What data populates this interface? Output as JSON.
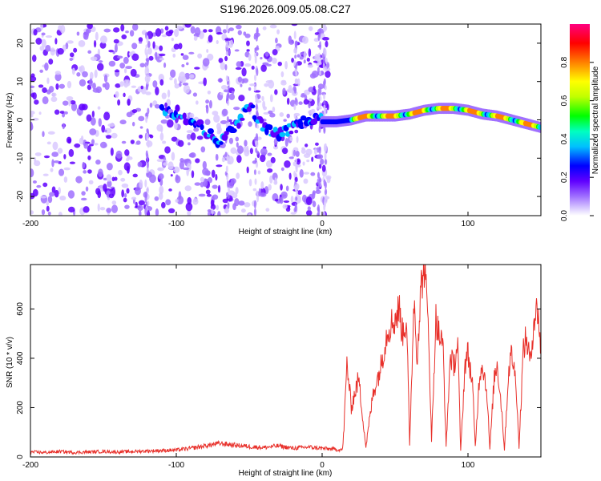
{
  "title": "S196.2026.009.05.08.C27",
  "chart_data": [
    {
      "type": "heatmap",
      "xlabel": "Height of straight line (km)",
      "ylabel": "Frequency (Hz)",
      "xlim": [
        -200,
        150
      ],
      "ylim": [
        -25,
        25
      ],
      "x_ticks": [
        -200,
        -100,
        0,
        100
      ],
      "x_tick_labels": [
        "-200",
        "-100",
        "0",
        "100"
      ],
      "y_ticks": [
        -20,
        -10,
        0,
        10,
        20
      ],
      "y_tick_labels": [
        "-20",
        "-10",
        "0",
        "10",
        "20"
      ],
      "colorbar": {
        "label": "Normalized spectral amplitude",
        "range": [
          0,
          1
        ],
        "ticks": [
          0.0,
          0.2,
          0.4,
          0.6,
          0.8
        ],
        "tick_labels": [
          "0.0",
          "0.2",
          "0.4",
          "0.6",
          "0.8"
        ],
        "colors": [
          "#ffffff",
          "#d9c9ff",
          "#a070ff",
          "#6000ff",
          "#0000ff",
          "#00c0ff",
          "#00ffc0",
          "#00ff00",
          "#c0ff00",
          "#ffff00",
          "#ff8000",
          "#ff0000",
          "#ff0080"
        ]
      },
      "ridge": {
        "description_x": [
          0,
          10,
          20,
          30,
          40,
          50,
          60,
          70,
          80,
          90,
          100,
          110,
          120,
          130,
          140,
          150
        ],
        "frequency_hz": [
          -0.5,
          -0.5,
          0,
          1,
          1,
          1,
          1.5,
          2.5,
          3,
          3,
          2.5,
          1.5,
          1,
          0,
          -1,
          -2
        ]
      },
      "pre_zero_band": {
        "x": [
          -110,
          -100,
          -90,
          -80,
          -70,
          -60,
          -50,
          -40,
          -30,
          -20,
          -10,
          0
        ],
        "frequency_hz": [
          3,
          2,
          0,
          -3,
          -6,
          -2,
          4,
          -2,
          -4,
          -2,
          0,
          0
        ]
      }
    },
    {
      "type": "line",
      "xlabel": "Height of straight line (km)",
      "ylabel": "SNR (10 * v/v)",
      "xlim": [
        -200,
        150
      ],
      "ylim": [
        0,
        780
      ],
      "x_ticks": [
        -200,
        -100,
        0,
        100
      ],
      "x_tick_labels": [
        "-200",
        "-100",
        "0",
        "100"
      ],
      "y_ticks": [
        0,
        200,
        400,
        600
      ],
      "y_tick_labels": [
        "0",
        "200",
        "400",
        "600"
      ],
      "series": [
        {
          "color": "#e8302a",
          "x": [
            -200,
            -190,
            -180,
            -170,
            -160,
            -150,
            -140,
            -130,
            -120,
            -110,
            -100,
            -90,
            -80,
            -70,
            -60,
            -50,
            -40,
            -30,
            -20,
            -10,
            0,
            10,
            14,
            15,
            17,
            20,
            25,
            30,
            35,
            40,
            45,
            50,
            53,
            55,
            58,
            60,
            63,
            65,
            68,
            70,
            73,
            75,
            78,
            80,
            83,
            85,
            88,
            90,
            93,
            95,
            98,
            100,
            103,
            105,
            108,
            110,
            113,
            115,
            118,
            120,
            123,
            125,
            128,
            130,
            133,
            135,
            138,
            140,
            143,
            145,
            148,
            150
          ],
          "y": [
            20,
            18,
            22,
            18,
            20,
            22,
            20,
            22,
            24,
            26,
            28,
            35,
            45,
            55,
            48,
            42,
            38,
            45,
            35,
            40,
            35,
            30,
            30,
            120,
            380,
            200,
            320,
            40,
            260,
            360,
            520,
            560,
            600,
            500,
            560,
            40,
            650,
            400,
            700,
            780,
            520,
            60,
            560,
            500,
            440,
            40,
            420,
            360,
            460,
            20,
            380,
            420,
            300,
            40,
            340,
            380,
            260,
            30,
            320,
            380,
            200,
            30,
            360,
            420,
            300,
            40,
            440,
            480,
            380,
            560,
            600,
            420
          ]
        }
      ]
    }
  ]
}
